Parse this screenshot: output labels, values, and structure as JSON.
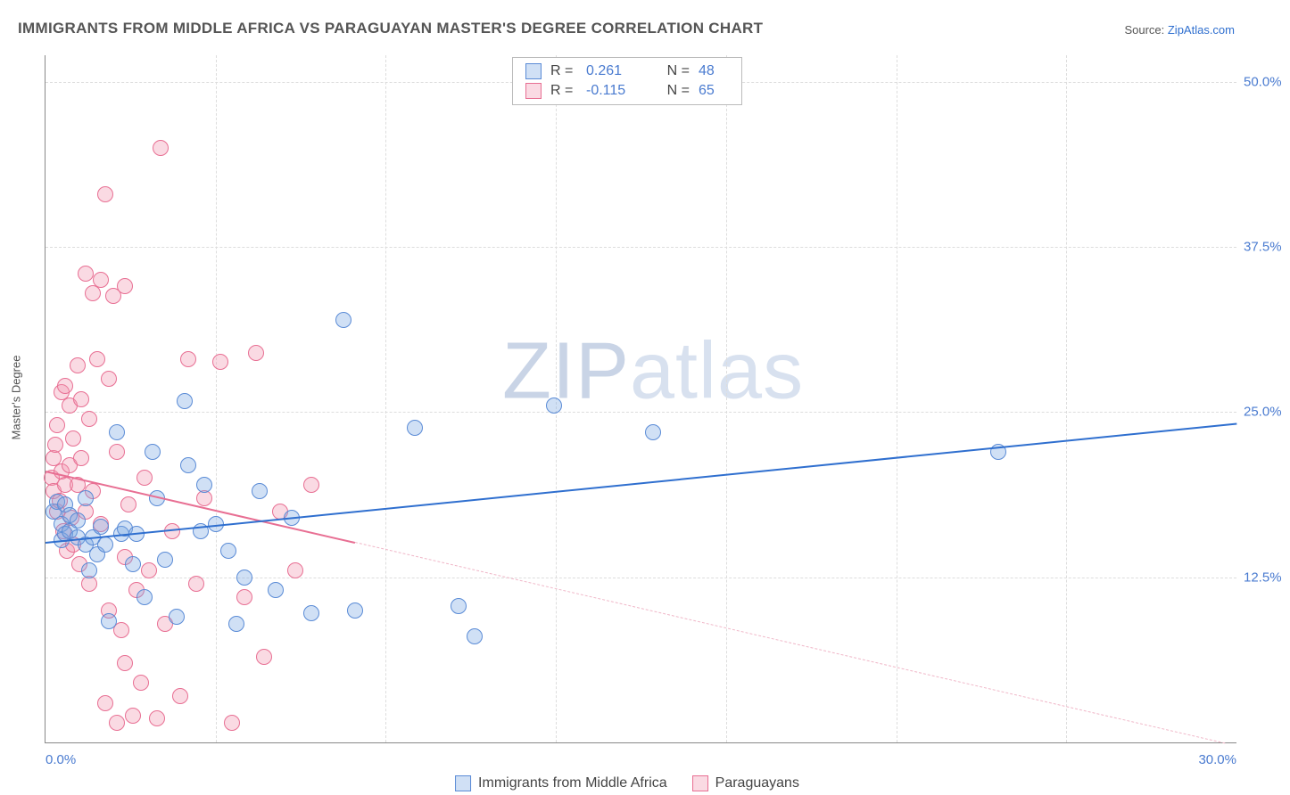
{
  "title": "IMMIGRANTS FROM MIDDLE AFRICA VS PARAGUAYAN MASTER'S DEGREE CORRELATION CHART",
  "source_prefix": "Source: ",
  "source_link": "ZipAtlas.com",
  "yaxis_label": "Master's Degree",
  "watermark_a": "ZIP",
  "watermark_b": "atlas",
  "chart": {
    "type": "scatter",
    "xmin": 0,
    "xmax": 30,
    "ymin": 0,
    "ymax": 52,
    "x_ticks": [
      0,
      30
    ],
    "x_tick_labels": [
      "0.0%",
      "30.0%"
    ],
    "y_ticks": [
      12.5,
      25.0,
      37.5,
      50.0
    ],
    "y_tick_labels": [
      "12.5%",
      "25.0%",
      "37.5%",
      "50.0%"
    ],
    "x_minor_gridlines": [
      4.29,
      8.57,
      12.86,
      17.14,
      21.43,
      25.71
    ],
    "y_gridlines": [
      12.5,
      25.0,
      37.5,
      50.0
    ],
    "background_color": "#ffffff",
    "grid_color": "#dddddd",
    "axis_color": "#888888",
    "marker_radius": 9,
    "marker_stroke": 1.4,
    "series": {
      "blue": {
        "label": "Immigrants from Middle Africa",
        "fill": "rgba(120,165,225,0.35)",
        "stroke": "#5a8bd6",
        "R_label": "R =",
        "R_value": "0.261",
        "N_label": "N =",
        "N_value": "48",
        "trend": {
          "x1": 0,
          "y1": 15.2,
          "x2": 30,
          "y2": 24.2,
          "color": "#2f6fcf",
          "width": 2.6,
          "dashed": false
        },
        "points": [
          [
            0.2,
            17.5
          ],
          [
            0.3,
            18.2
          ],
          [
            0.4,
            16.5
          ],
          [
            0.4,
            15.3
          ],
          [
            0.5,
            18.0
          ],
          [
            0.5,
            15.8
          ],
          [
            0.6,
            17.2
          ],
          [
            0.6,
            16.0
          ],
          [
            0.8,
            15.5
          ],
          [
            0.8,
            16.8
          ],
          [
            1.0,
            15.0
          ],
          [
            1.0,
            18.5
          ],
          [
            1.1,
            13.0
          ],
          [
            1.2,
            15.5
          ],
          [
            1.3,
            14.2
          ],
          [
            1.4,
            16.3
          ],
          [
            1.5,
            15.0
          ],
          [
            1.6,
            9.2
          ],
          [
            1.8,
            23.5
          ],
          [
            1.9,
            15.8
          ],
          [
            2.0,
            16.2
          ],
          [
            2.2,
            13.5
          ],
          [
            2.3,
            15.8
          ],
          [
            2.5,
            11.0
          ],
          [
            2.7,
            22.0
          ],
          [
            2.8,
            18.5
          ],
          [
            3.0,
            13.8
          ],
          [
            3.3,
            9.5
          ],
          [
            3.5,
            25.8
          ],
          [
            3.6,
            21.0
          ],
          [
            3.9,
            16.0
          ],
          [
            4.0,
            19.5
          ],
          [
            4.3,
            16.5
          ],
          [
            4.6,
            14.5
          ],
          [
            4.8,
            9.0
          ],
          [
            5.0,
            12.5
          ],
          [
            5.4,
            19.0
          ],
          [
            5.8,
            11.5
          ],
          [
            6.2,
            17.0
          ],
          [
            6.7,
            9.8
          ],
          [
            7.5,
            32.0
          ],
          [
            7.8,
            10.0
          ],
          [
            9.3,
            23.8
          ],
          [
            10.4,
            10.3
          ],
          [
            10.8,
            8.0
          ],
          [
            12.8,
            25.5
          ],
          [
            15.3,
            23.5
          ],
          [
            24.0,
            22.0
          ]
        ]
      },
      "pink": {
        "label": "Paraguayans",
        "fill": "rgba(240,150,175,0.35)",
        "stroke": "#e86f93",
        "R_label": "R =",
        "R_value": "-0.115",
        "N_label": "N =",
        "N_value": "65",
        "trend_solid": {
          "x1": 0,
          "y1": 20.6,
          "x2": 7.8,
          "y2": 15.2,
          "color": "#e86f93",
          "width": 2.4,
          "dashed": false
        },
        "trend_dashed": {
          "x1": 7.8,
          "y1": 15.2,
          "x2": 30,
          "y2": -0.2,
          "color": "#f0b7c8",
          "width": 1.4,
          "dashed": true
        },
        "points": [
          [
            0.15,
            20.0
          ],
          [
            0.2,
            21.5
          ],
          [
            0.2,
            19.0
          ],
          [
            0.25,
            22.5
          ],
          [
            0.3,
            17.5
          ],
          [
            0.3,
            24.0
          ],
          [
            0.35,
            18.3
          ],
          [
            0.4,
            20.5
          ],
          [
            0.4,
            26.5
          ],
          [
            0.45,
            16.0
          ],
          [
            0.5,
            19.5
          ],
          [
            0.5,
            27.0
          ],
          [
            0.55,
            14.5
          ],
          [
            0.6,
            21.0
          ],
          [
            0.6,
            25.5
          ],
          [
            0.65,
            17.0
          ],
          [
            0.7,
            23.0
          ],
          [
            0.7,
            15.0
          ],
          [
            0.8,
            28.5
          ],
          [
            0.8,
            19.5
          ],
          [
            0.85,
            13.5
          ],
          [
            0.9,
            26.0
          ],
          [
            0.9,
            21.5
          ],
          [
            1.0,
            17.5
          ],
          [
            1.0,
            35.5
          ],
          [
            1.1,
            12.0
          ],
          [
            1.1,
            24.5
          ],
          [
            1.2,
            34.0
          ],
          [
            1.2,
            19.0
          ],
          [
            1.3,
            29.0
          ],
          [
            1.4,
            16.5
          ],
          [
            1.4,
            35.0
          ],
          [
            1.5,
            41.5
          ],
          [
            1.6,
            10.0
          ],
          [
            1.6,
            27.5
          ],
          [
            1.7,
            33.8
          ],
          [
            1.8,
            1.5
          ],
          [
            1.8,
            22.0
          ],
          [
            1.9,
            8.5
          ],
          [
            2.0,
            14.0
          ],
          [
            2.0,
            34.5
          ],
          [
            2.1,
            18.0
          ],
          [
            2.2,
            2.0
          ],
          [
            2.3,
            11.5
          ],
          [
            2.5,
            20.0
          ],
          [
            2.6,
            13.0
          ],
          [
            2.8,
            1.8
          ],
          [
            2.9,
            45.0
          ],
          [
            3.0,
            9.0
          ],
          [
            3.2,
            16.0
          ],
          [
            3.4,
            3.5
          ],
          [
            3.6,
            29.0
          ],
          [
            3.8,
            12.0
          ],
          [
            4.0,
            18.5
          ],
          [
            4.4,
            28.8
          ],
          [
            4.7,
            1.5
          ],
          [
            5.0,
            11.0
          ],
          [
            5.3,
            29.5
          ],
          [
            5.5,
            6.5
          ],
          [
            5.9,
            17.5
          ],
          [
            6.3,
            13.0
          ],
          [
            6.7,
            19.5
          ],
          [
            1.5,
            3.0
          ],
          [
            2.0,
            6.0
          ],
          [
            2.4,
            4.5
          ]
        ]
      }
    }
  }
}
